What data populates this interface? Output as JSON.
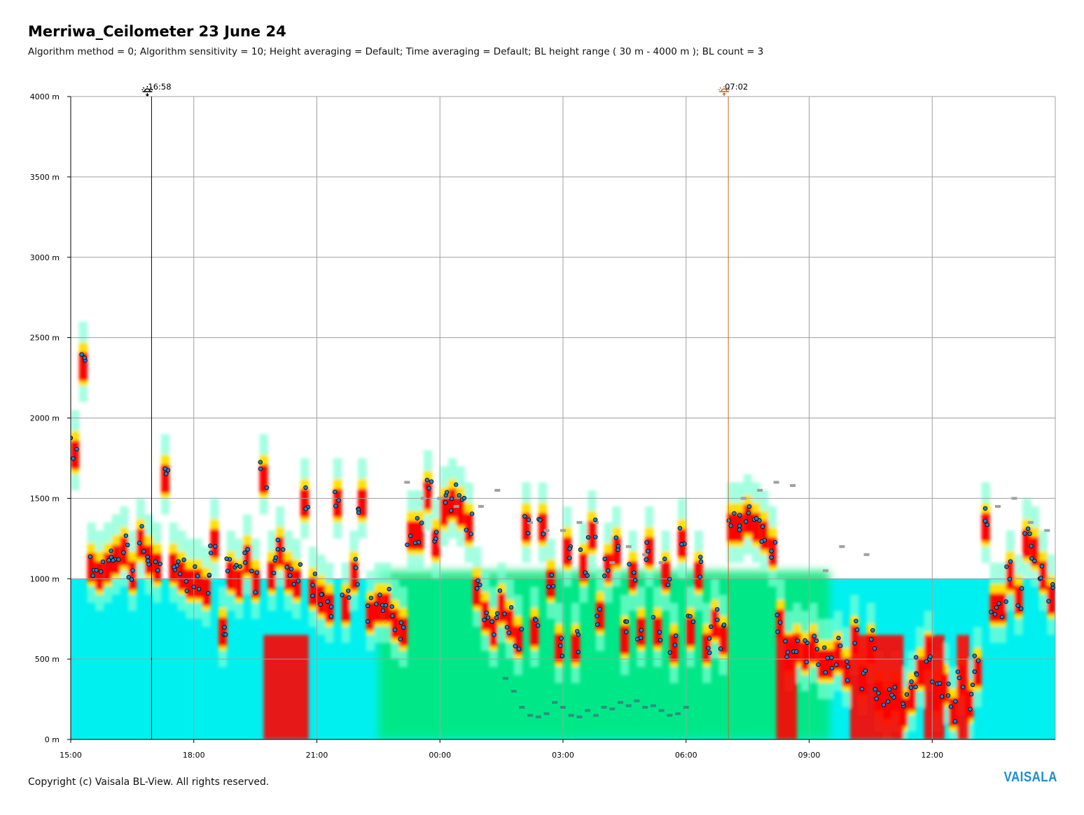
{
  "header": {
    "title": "Merriwa_Ceilometer 23 June 24",
    "subtitle": "Algorithm method = 0; Algorithm sensitivity = 10; Height averaging = Default; Time averaging = Default; BL height range ( 30 m - 4000 m ); BL count = 3"
  },
  "footer": {
    "copyright": "Copyright (c) Vaisala BL-View. All rights reserved.",
    "brand": "VAISALA"
  },
  "colors": {
    "grid": "#a0a0a0",
    "sunset_line": "#000000",
    "sunrise_line": "#c8641e",
    "bl_marker": "#2a7fc0",
    "bl_marker_edge": "#000000",
    "cloud_marker": "#a0a0a0",
    "aerosol_marker": "#2f8f7f",
    "backscatter_low": "#00f0f0",
    "backscatter_mid": "#00e676",
    "backscatter_high": "#ff0000"
  },
  "chart_data": {
    "type": "heatmap",
    "title": "Merriwa_Ceilometer 23 June 24",
    "xlabel": "",
    "ylabel": "",
    "x_axis": {
      "unit": "hours since 15:00",
      "range": [
        0,
        24
      ],
      "ticks": [
        0,
        3,
        6,
        9,
        12,
        15,
        18,
        21
      ],
      "tick_labels": [
        "15:00",
        "18:00",
        "21:00",
        "00:00",
        "03:00",
        "06:00",
        "09:00",
        "12:00"
      ]
    },
    "y_axis": {
      "unit": "m",
      "range": [
        0,
        4000
      ],
      "ticks": [
        0,
        500,
        1000,
        1500,
        2000,
        2500,
        3000,
        3500,
        4000
      ],
      "tick_labels": [
        "0 m",
        "500 m",
        "1000 m",
        "1500 m",
        "2000 m",
        "2500 m",
        "3000 m",
        "3500 m",
        "4000 m"
      ]
    },
    "grid": true,
    "events": [
      {
        "name": "sunset",
        "icon": "sunset-icon",
        "label": "16:58",
        "x": 1.97
      },
      {
        "name": "sunrise",
        "icon": "sunrise-icon",
        "label": "07:02",
        "x": 16.03
      }
    ],
    "bl_height_series": {
      "name": "BL height",
      "x": [
        0.0,
        0.2,
        0.4,
        0.6,
        0.8,
        1.0,
        1.2,
        1.4,
        1.6,
        1.8,
        2.0,
        2.2,
        2.4,
        2.6,
        2.8,
        3.0,
        3.2,
        3.4,
        3.6,
        3.8,
        4.0,
        4.2,
        4.4,
        4.6,
        4.8,
        5.0,
        5.2,
        5.4,
        5.6,
        5.8,
        6.0,
        6.2,
        6.4,
        6.6,
        6.8,
        7.0,
        7.2,
        7.4,
        7.6,
        7.8,
        8.0,
        8.2,
        8.4,
        8.6,
        8.8,
        9.0,
        9.2,
        9.4,
        9.6,
        9.8,
        10.0,
        10.2,
        10.4,
        10.6,
        10.8,
        11.0,
        11.2,
        11.4,
        11.6,
        11.8,
        12.0,
        12.2,
        12.4,
        12.6,
        12.8,
        13.0,
        13.2,
        13.4,
        13.6,
        13.8,
        14.0,
        14.2,
        14.4,
        14.6,
        14.8,
        15.0,
        15.2,
        15.4,
        15.6,
        15.8,
        16.0,
        16.2,
        16.4,
        16.6,
        16.8,
        17.0,
        17.2,
        17.4,
        17.6,
        17.8,
        18.0,
        18.2,
        18.4,
        18.6,
        18.8,
        19.0,
        19.2,
        19.4,
        19.6,
        19.8,
        20.0,
        20.2,
        20.4,
        20.6,
        20.8,
        21.0,
        21.2,
        21.4,
        21.6,
        21.8,
        22.0,
        22.2,
        22.4,
        22.6,
        22.8,
        23.0,
        23.2,
        23.4,
        23.6,
        23.8
      ],
      "y": [
        1800,
        2350,
        1100,
        1050,
        1100,
        1150,
        1200,
        1050,
        1250,
        1150,
        1100,
        1650,
        1100,
        1050,
        1000,
        1000,
        950,
        1250,
        700,
        1050,
        1000,
        1150,
        1000,
        1650,
        1050,
        1200,
        1050,
        1000,
        1500,
        950,
        900,
        850,
        1500,
        850,
        1050,
        1500,
        800,
        850,
        850,
        750,
        700,
        1300,
        1300,
        1550,
        1250,
        1450,
        1500,
        1450,
        1350,
        950,
        800,
        700,
        850,
        750,
        650,
        1350,
        700,
        1350,
        1000,
        600,
        1200,
        600,
        1100,
        1300,
        800,
        1100,
        1200,
        650,
        1050,
        700,
        1200,
        700,
        1050,
        600,
        1250,
        700,
        1050,
        600,
        750,
        650,
        1350,
        1350,
        1400,
        1350,
        1300,
        1200,
        750,
        550,
        600,
        550,
        600,
        500,
        500,
        550,
        450,
        650,
        400,
        600,
        300,
        250,
        300,
        200,
        300,
        450,
        550,
        300,
        350,
        200,
        400,
        250,
        450,
        1350,
        850,
        850,
        1050,
        900,
        1250,
        1200,
        1050,
        900
      ]
    },
    "cloud_base_series": {
      "name": "cloud base",
      "x": [
        8.2,
        8.6,
        9.0,
        9.4,
        10.0,
        10.4,
        11.2,
        11.6,
        12.0,
        12.4,
        12.8,
        13.2,
        13.6,
        14.0,
        14.4,
        16.4,
        16.8,
        17.2,
        17.6,
        18.4,
        18.8,
        19.4,
        22.6,
        23.0,
        23.4,
        23.8
      ],
      "y": [
        1600,
        1500,
        1500,
        1450,
        1450,
        1550,
        1350,
        1300,
        1300,
        1350,
        1350,
        1100,
        1200,
        1150,
        1100,
        1500,
        1550,
        1600,
        1580,
        1050,
        1200,
        1150,
        1450,
        1500,
        1350,
        1300
      ]
    },
    "aerosol_layer_series": {
      "name": "aerosol layer",
      "x": [
        10.6,
        10.8,
        11.0,
        11.2,
        11.4,
        11.6,
        11.8,
        12.0,
        12.2,
        12.4,
        12.6,
        12.8,
        13.0,
        13.2,
        13.4,
        13.6,
        13.8,
        14.0,
        14.2,
        14.4,
        14.6,
        14.8,
        15.0
      ],
      "y": [
        380,
        300,
        200,
        150,
        140,
        160,
        230,
        200,
        150,
        140,
        180,
        150,
        200,
        190,
        230,
        210,
        240,
        200,
        210,
        180,
        150,
        160,
        200
      ]
    }
  }
}
